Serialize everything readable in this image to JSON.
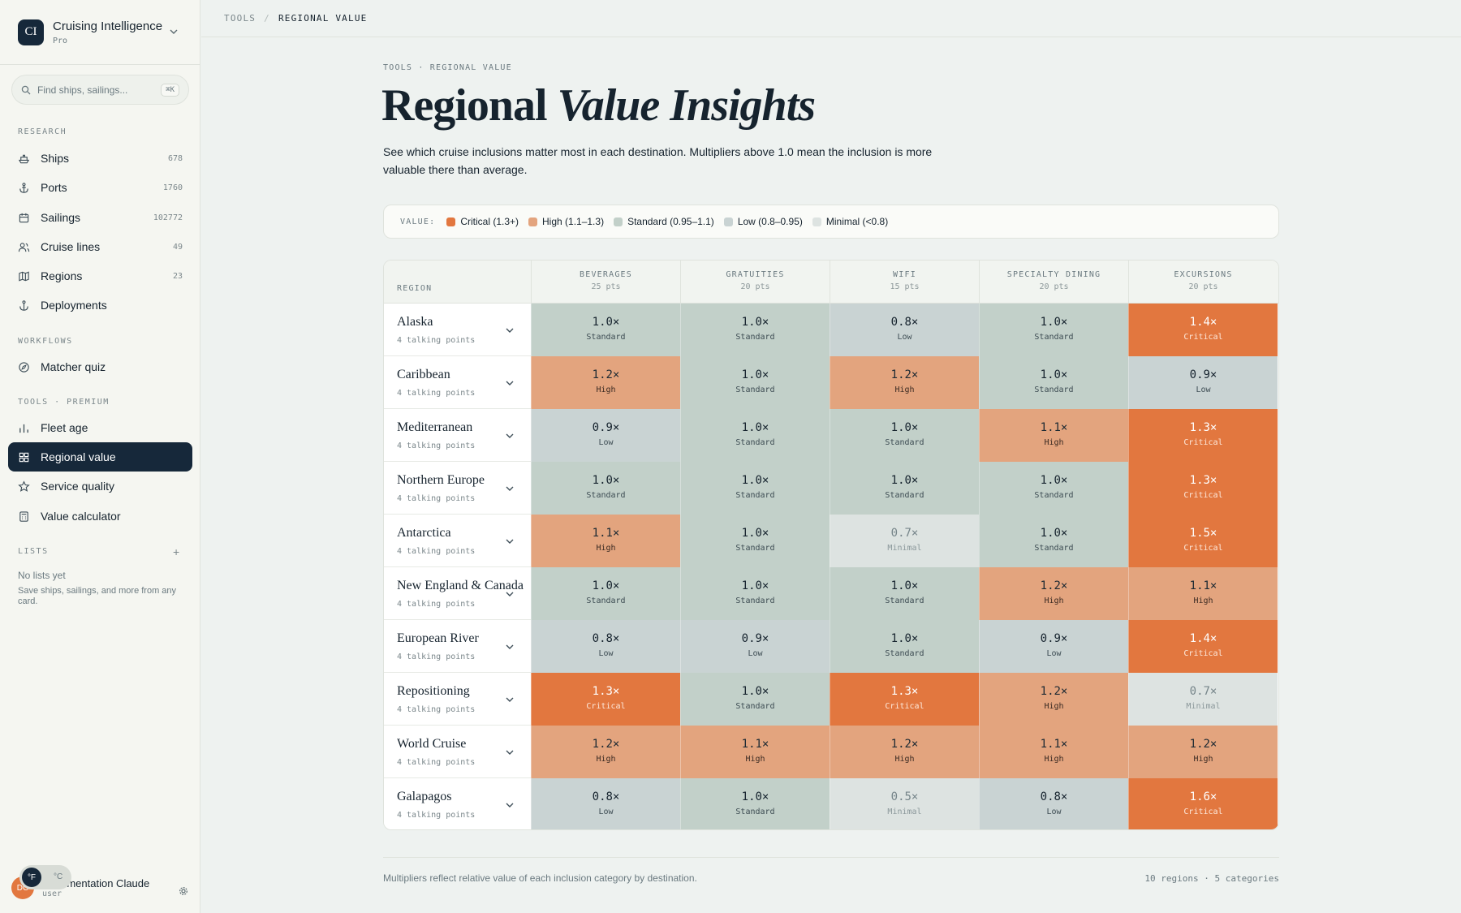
{
  "sidebar": {
    "brand": {
      "logo": "CI",
      "name": "Cruising Intelligence",
      "plan": "Pro"
    },
    "search": {
      "placeholder": "Find ships, sailings...",
      "shortcut": "⌘K"
    },
    "sections": {
      "research": "RESEARCH",
      "workflows": "WORKFLOWS",
      "tools": "TOOLS · PREMIUM",
      "lists": "LISTS"
    },
    "research_items": [
      {
        "label": "Ships",
        "count": "678",
        "icon": "ship-icon"
      },
      {
        "label": "Ports",
        "count": "1760",
        "icon": "anchor-icon"
      },
      {
        "label": "Sailings",
        "count": "102772",
        "icon": "calendar-icon"
      },
      {
        "label": "Cruise lines",
        "count": "49",
        "icon": "users-icon"
      },
      {
        "label": "Regions",
        "count": "23",
        "icon": "map-icon"
      },
      {
        "label": "Deployments",
        "count": "",
        "icon": "anchor-icon"
      }
    ],
    "workflow_items": [
      {
        "label": "Matcher quiz",
        "icon": "compass-icon"
      }
    ],
    "tool_items": [
      {
        "label": "Fleet age",
        "icon": "bar-chart-icon"
      },
      {
        "label": "Regional value",
        "icon": "grid-icon"
      },
      {
        "label": "Service quality",
        "icon": "star-icon"
      },
      {
        "label": "Value calculator",
        "icon": "calculator-icon"
      }
    ],
    "lists": {
      "empty_title": "No lists yet",
      "empty_desc": "Save ships, sailings, and more from any card."
    },
    "user": {
      "initials": "DC",
      "name": "Documentation Claude",
      "role": "user"
    },
    "units": {
      "f": "°F",
      "c": "°C"
    }
  },
  "topbar": {
    "crumb1": "TOOLS",
    "sep": "/",
    "crumb2": "REGIONAL VALUE"
  },
  "page": {
    "eyebrow": "TOOLS · REGIONAL VALUE",
    "title_plain": "Regional ",
    "title_italic": "Value Insights",
    "description": "See which cruise inclusions matter most in each destination. Multipliers above 1.0 mean the inclusion is more valuable there than average."
  },
  "legend": {
    "label": "VALUE:",
    "items": [
      {
        "label": "Critical (1.3+)",
        "color": "#e2773f"
      },
      {
        "label": "High (1.1–1.3)",
        "color": "#e3a47e"
      },
      {
        "label": "Standard (0.95–1.1)",
        "color": "#c2d0c9"
      },
      {
        "label": "Low (0.8–0.95)",
        "color": "#c9d3d3"
      },
      {
        "label": "Minimal (<0.8)",
        "color": "#dde3e1"
      }
    ]
  },
  "grid": {
    "region_header": "REGION",
    "columns": [
      {
        "name": "BEVERAGES",
        "pts": "25 pts"
      },
      {
        "name": "GRATUITIES",
        "pts": "20 pts"
      },
      {
        "name": "WIFI",
        "pts": "15 pts"
      },
      {
        "name": "SPECIALTY DINING",
        "pts": "20 pts"
      },
      {
        "name": "EXCURSIONS",
        "pts": "20 pts"
      }
    ],
    "rows": [
      {
        "region": "Alaska",
        "sub": "4 talking points",
        "cells": [
          {
            "v": "1.0×",
            "l": "Standard"
          },
          {
            "v": "1.0×",
            "l": "Standard"
          },
          {
            "v": "0.8×",
            "l": "Low"
          },
          {
            "v": "1.0×",
            "l": "Standard"
          },
          {
            "v": "1.4×",
            "l": "Critical"
          }
        ]
      },
      {
        "region": "Caribbean",
        "sub": "4 talking points",
        "cells": [
          {
            "v": "1.2×",
            "l": "High"
          },
          {
            "v": "1.0×",
            "l": "Standard"
          },
          {
            "v": "1.2×",
            "l": "High"
          },
          {
            "v": "1.0×",
            "l": "Standard"
          },
          {
            "v": "0.9×",
            "l": "Low"
          }
        ]
      },
      {
        "region": "Mediterranean",
        "sub": "4 talking points",
        "cells": [
          {
            "v": "0.9×",
            "l": "Low"
          },
          {
            "v": "1.0×",
            "l": "Standard"
          },
          {
            "v": "1.0×",
            "l": "Standard"
          },
          {
            "v": "1.1×",
            "l": "High"
          },
          {
            "v": "1.3×",
            "l": "Critical"
          }
        ]
      },
      {
        "region": "Northern Europe",
        "sub": "4 talking points",
        "cells": [
          {
            "v": "1.0×",
            "l": "Standard"
          },
          {
            "v": "1.0×",
            "l": "Standard"
          },
          {
            "v": "1.0×",
            "l": "Standard"
          },
          {
            "v": "1.0×",
            "l": "Standard"
          },
          {
            "v": "1.3×",
            "l": "Critical"
          }
        ]
      },
      {
        "region": "Antarctica",
        "sub": "4 talking points",
        "cells": [
          {
            "v": "1.1×",
            "l": "High"
          },
          {
            "v": "1.0×",
            "l": "Standard"
          },
          {
            "v": "0.7×",
            "l": "Minimal"
          },
          {
            "v": "1.0×",
            "l": "Standard"
          },
          {
            "v": "1.5×",
            "l": "Critical"
          }
        ]
      },
      {
        "region": "New England & Canada",
        "sub": "4 talking points",
        "cells": [
          {
            "v": "1.0×",
            "l": "Standard"
          },
          {
            "v": "1.0×",
            "l": "Standard"
          },
          {
            "v": "1.0×",
            "l": "Standard"
          },
          {
            "v": "1.2×",
            "l": "High"
          },
          {
            "v": "1.1×",
            "l": "High"
          }
        ]
      },
      {
        "region": "European River",
        "sub": "4 talking points",
        "cells": [
          {
            "v": "0.8×",
            "l": "Low"
          },
          {
            "v": "0.9×",
            "l": "Low"
          },
          {
            "v": "1.0×",
            "l": "Standard"
          },
          {
            "v": "0.9×",
            "l": "Low"
          },
          {
            "v": "1.4×",
            "l": "Critical"
          }
        ]
      },
      {
        "region": "Repositioning",
        "sub": "4 talking points",
        "cells": [
          {
            "v": "1.3×",
            "l": "Critical"
          },
          {
            "v": "1.0×",
            "l": "Standard"
          },
          {
            "v": "1.3×",
            "l": "Critical"
          },
          {
            "v": "1.2×",
            "l": "High"
          },
          {
            "v": "0.7×",
            "l": "Minimal"
          }
        ]
      },
      {
        "region": "World Cruise",
        "sub": "4 talking points",
        "cells": [
          {
            "v": "1.2×",
            "l": "High"
          },
          {
            "v": "1.1×",
            "l": "High"
          },
          {
            "v": "1.2×",
            "l": "High"
          },
          {
            "v": "1.1×",
            "l": "High"
          },
          {
            "v": "1.2×",
            "l": "High"
          }
        ]
      },
      {
        "region": "Galapagos",
        "sub": "4 talking points",
        "cells": [
          {
            "v": "0.8×",
            "l": "Low"
          },
          {
            "v": "1.0×",
            "l": "Standard"
          },
          {
            "v": "0.5×",
            "l": "Minimal"
          },
          {
            "v": "0.8×",
            "l": "Low"
          },
          {
            "v": "1.6×",
            "l": "Critical"
          }
        ]
      }
    ]
  },
  "footer": {
    "note": "Multipliers reflect relative value of each inclusion category by destination.",
    "summary": "10 regions · 5 categories"
  }
}
